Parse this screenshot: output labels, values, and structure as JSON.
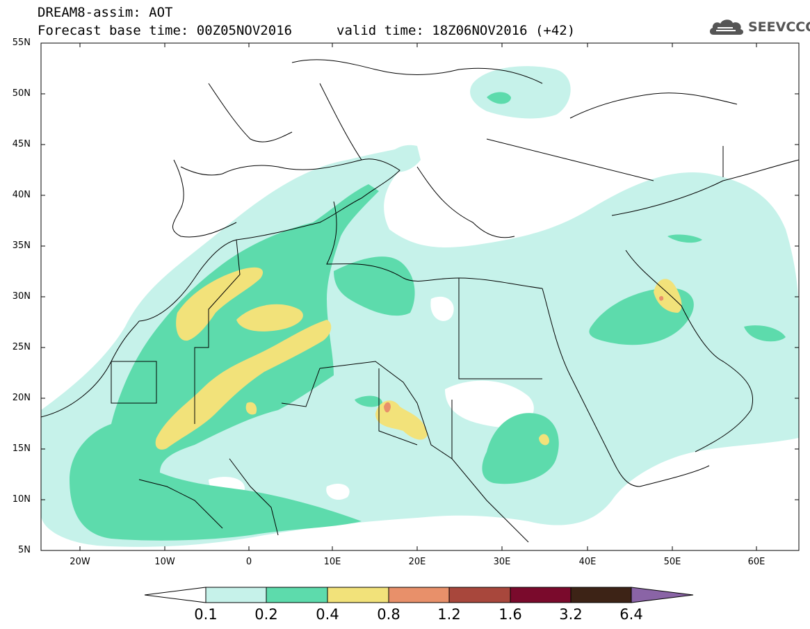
{
  "header": {
    "model_line": "DREAM8-assim: AOT",
    "base_time_line": "Forecast base time: 00Z05NOV2016",
    "valid_time_line": "valid time: 18Z06NOV2016 (+42)"
  },
  "logo": {
    "text": "SEEVCCC",
    "icon": "cloud-icon"
  },
  "latitude_labels": [
    "55N",
    "50N",
    "45N",
    "40N",
    "35N",
    "30N",
    "25N",
    "20N",
    "15N",
    "10N",
    "5N"
  ],
  "longitude_labels": [
    "20W",
    "10W",
    "0",
    "10E",
    "20E",
    "30E",
    "40E",
    "50E",
    "60E"
  ],
  "colorbar": {
    "labels": [
      "0.1",
      "0.2",
      "0.4",
      "0.8",
      "1.2",
      "1.6",
      "3.2",
      "6.4"
    ],
    "colors": [
      "#c6f2ea",
      "#5ddbac",
      "#f2e27a",
      "#e8906a",
      "#a8473c",
      "#7a0a2c",
      "#3d2316",
      "#8a64a6"
    ]
  }
}
